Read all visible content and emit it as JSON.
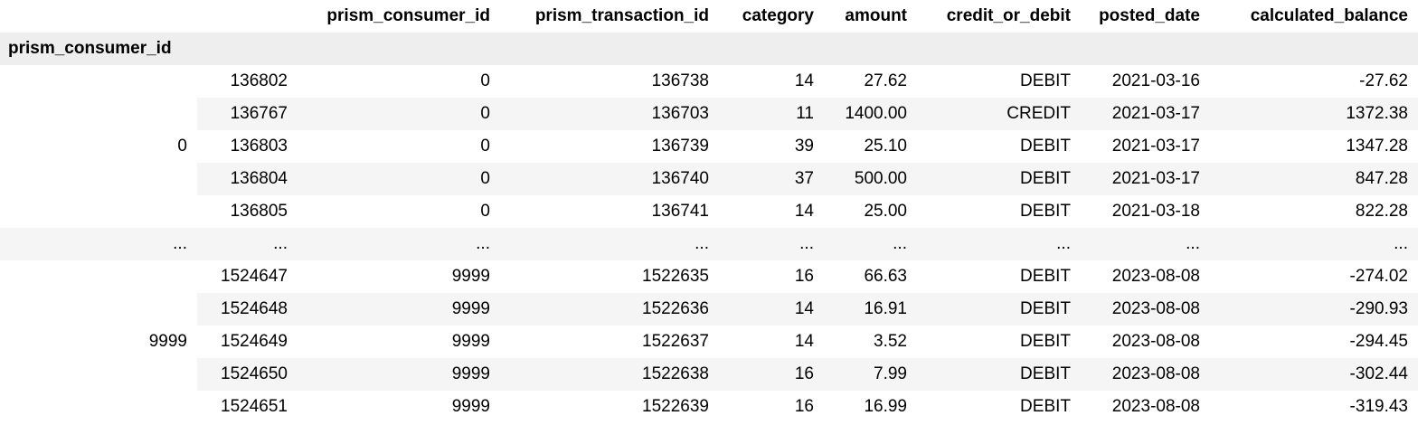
{
  "columns": [
    "prism_consumer_id",
    "prism_transaction_id",
    "category",
    "amount",
    "credit_or_debit",
    "posted_date",
    "calculated_balance"
  ],
  "index_name": "prism_consumer_id",
  "groups": [
    {
      "key": "0",
      "rows": [
        {
          "index": "136802",
          "values": [
            "0",
            "136738",
            "14",
            "27.62",
            "DEBIT",
            "2021-03-16",
            "-27.62"
          ]
        },
        {
          "index": "136767",
          "values": [
            "0",
            "136703",
            "11",
            "1400.00",
            "CREDIT",
            "2021-03-17",
            "1372.38"
          ]
        },
        {
          "index": "136803",
          "values": [
            "0",
            "136739",
            "39",
            "25.10",
            "DEBIT",
            "2021-03-17",
            "1347.28"
          ]
        },
        {
          "index": "136804",
          "values": [
            "0",
            "136740",
            "37",
            "500.00",
            "DEBIT",
            "2021-03-17",
            "847.28"
          ]
        },
        {
          "index": "136805",
          "values": [
            "0",
            "136741",
            "14",
            "25.00",
            "DEBIT",
            "2021-03-18",
            "822.28"
          ]
        }
      ]
    },
    {
      "key": "...",
      "rows": [
        {
          "index": "...",
          "values": [
            "...",
            "...",
            "...",
            "...",
            "...",
            "...",
            "..."
          ]
        }
      ]
    },
    {
      "key": "9999",
      "rows": [
        {
          "index": "1524647",
          "values": [
            "9999",
            "1522635",
            "16",
            "66.63",
            "DEBIT",
            "2023-08-08",
            "-274.02"
          ]
        },
        {
          "index": "1524648",
          "values": [
            "9999",
            "1522636",
            "14",
            "16.91",
            "DEBIT",
            "2023-08-08",
            "-290.93"
          ]
        },
        {
          "index": "1524649",
          "values": [
            "9999",
            "1522637",
            "14",
            "3.52",
            "DEBIT",
            "2023-08-08",
            "-294.45"
          ]
        },
        {
          "index": "1524650",
          "values": [
            "9999",
            "1522638",
            "16",
            "7.99",
            "DEBIT",
            "2023-08-08",
            "-302.44"
          ]
        },
        {
          "index": "1524651",
          "values": [
            "9999",
            "1522639",
            "16",
            "16.99",
            "DEBIT",
            "2023-08-08",
            "-319.43"
          ]
        }
      ]
    }
  ]
}
